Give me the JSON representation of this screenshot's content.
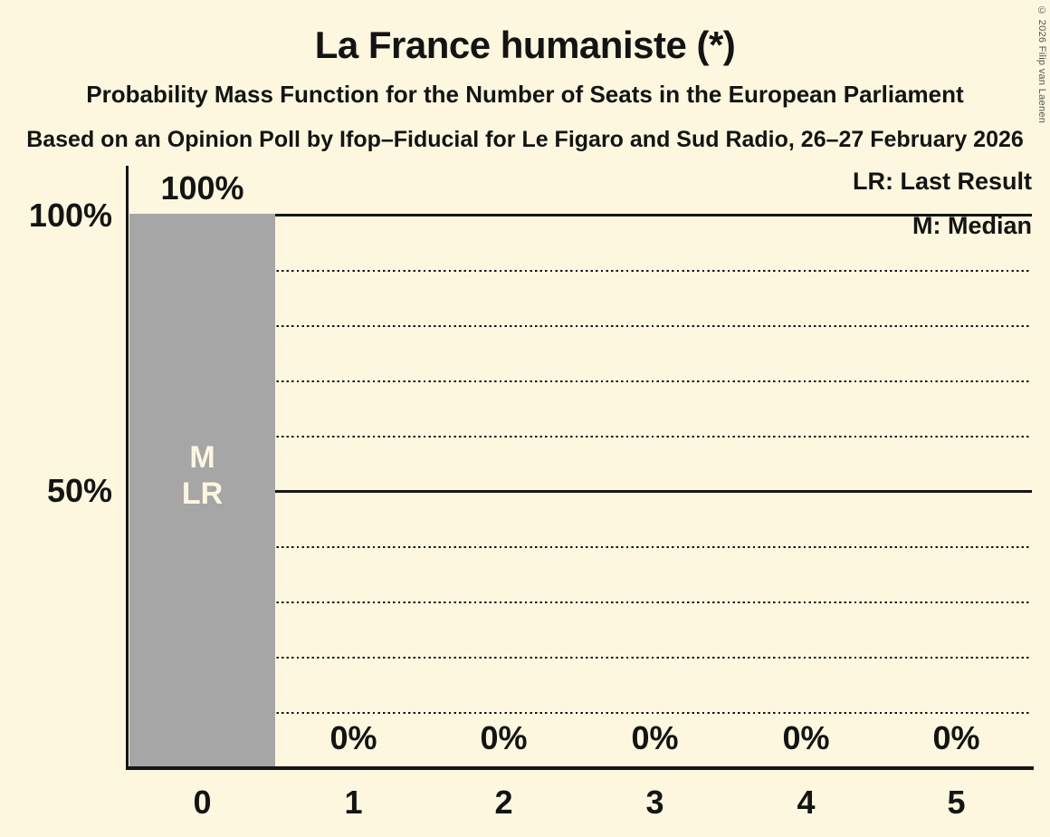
{
  "header": {
    "title": "La France humaniste (*)",
    "subtitle": "Probability Mass Function for the Number of Seats in the European Parliament",
    "source_line": "Based on an Opinion Poll by Ifop–Fiducial for Le Figaro and Sud Radio, 26–27 February 2026"
  },
  "legend": {
    "lr": "LR: Last Result",
    "m": "M: Median"
  },
  "copyright": "© 2026 Filip van Laenen",
  "chart_data": {
    "type": "bar",
    "title": "La France humaniste (*)",
    "subtitle": "Probability Mass Function for the Number of Seats in the European Parliament",
    "source": "Based on an Opinion Poll by Ifop–Fiducial for Le Figaro and Sud Radio, 26–27 February 2026",
    "categories": [
      "0",
      "1",
      "2",
      "3",
      "4",
      "5"
    ],
    "values": [
      100,
      0,
      0,
      0,
      0,
      0
    ],
    "value_labels": [
      "100%",
      "0%",
      "0%",
      "0%",
      "0%",
      "0%"
    ],
    "bar_annotations": [
      "M",
      "LR"
    ],
    "annotated_bar_category": "0",
    "median_seats": "0",
    "last_result_seats": "0",
    "xlabel": "",
    "ylabel": "",
    "ylim": [
      0,
      100
    ],
    "yticks": [
      {
        "label": "100%",
        "value": 100
      },
      {
        "label": "50%",
        "value": 50
      }
    ],
    "gridlines": {
      "solid_percent": [
        100,
        50
      ],
      "dotted_percent": [
        90,
        80,
        70,
        60,
        40,
        30,
        20,
        10
      ]
    },
    "legend_entries": [
      "LR: Last Result",
      "M: Median"
    ],
    "legend_position": "top-right",
    "grid": "on",
    "colors": {
      "background": "#fdf7df",
      "bar": "#a6a6a6",
      "bar_annotation_text": "#fdf7df",
      "text": "#141414",
      "axis": "#151515",
      "copyright_text": "#555555"
    }
  }
}
